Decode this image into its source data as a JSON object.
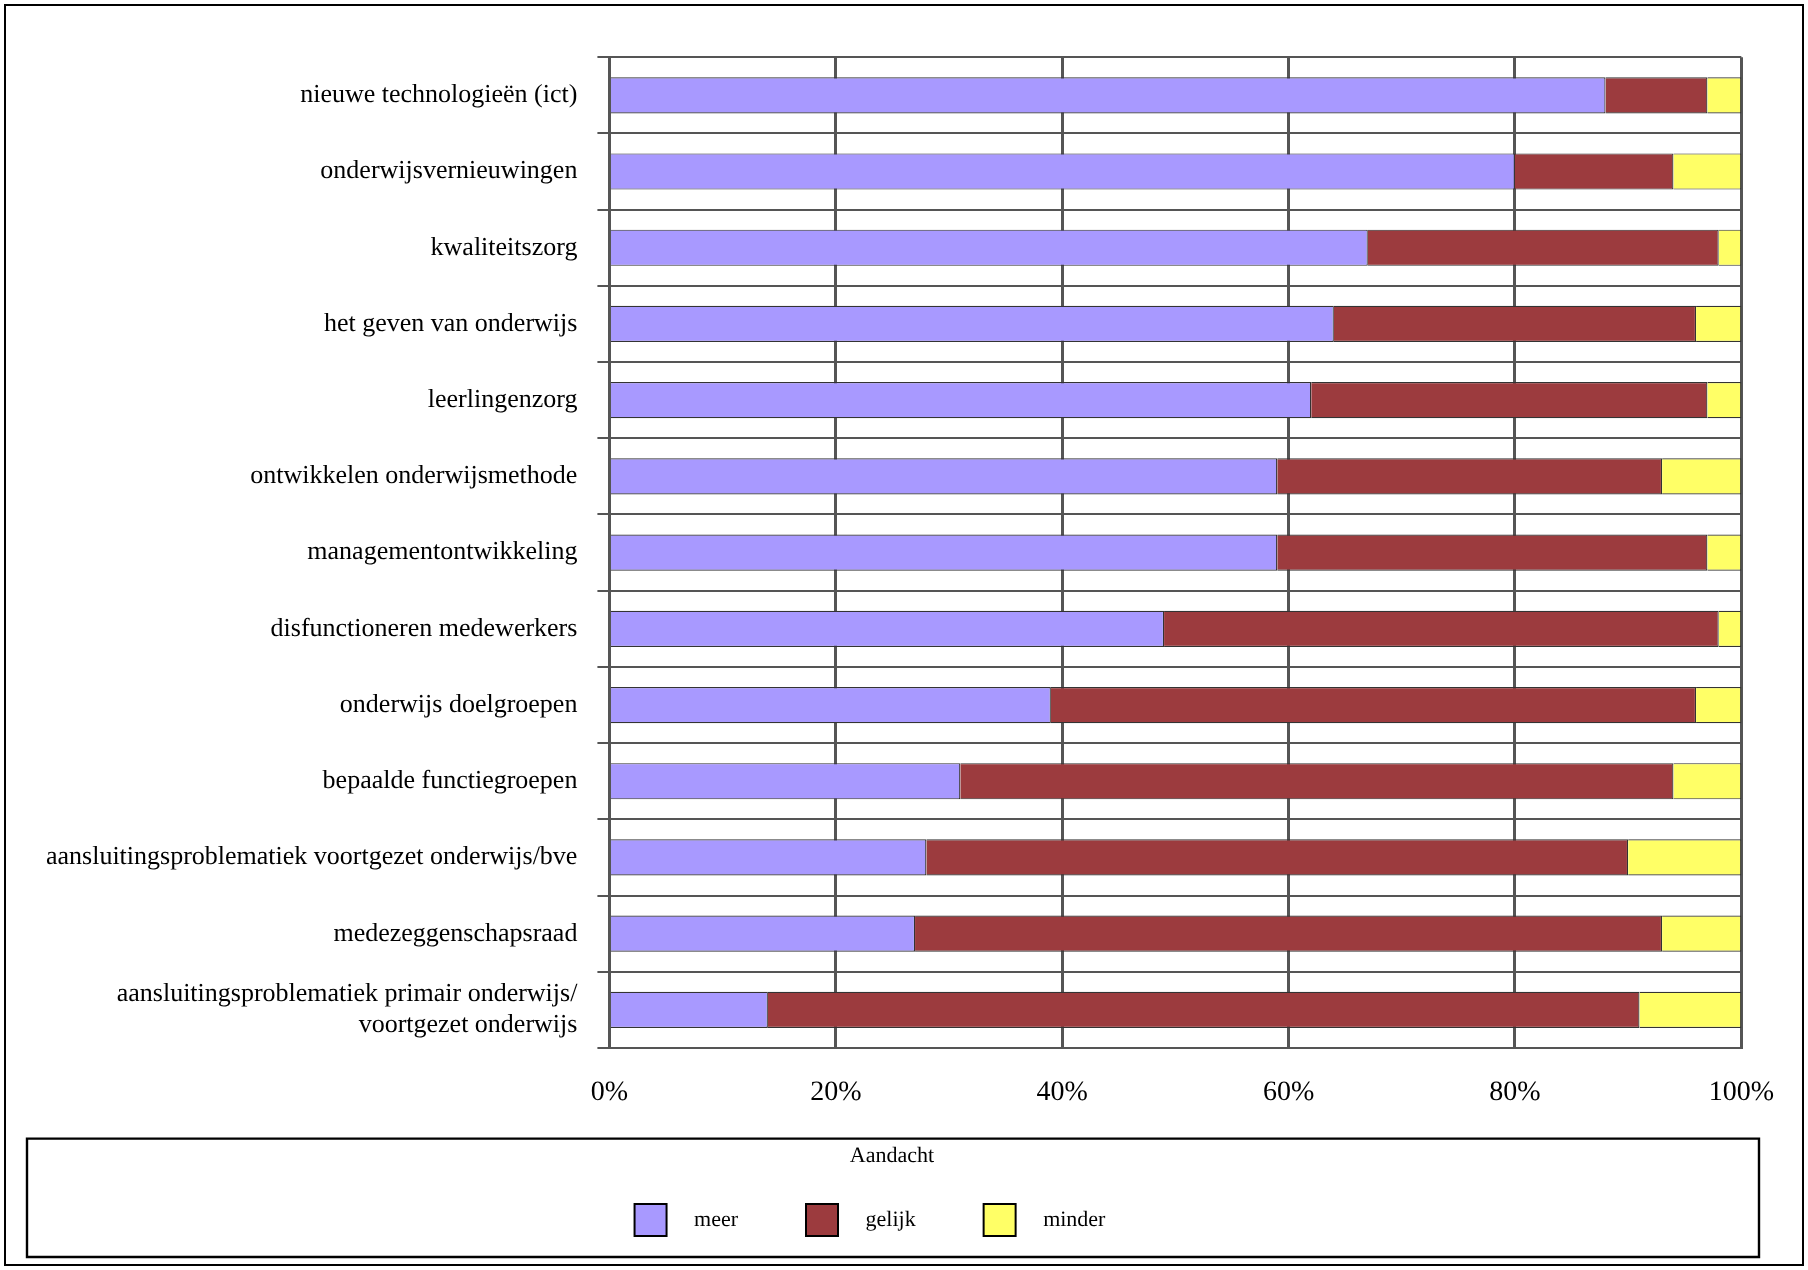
{
  "chart_data": {
    "type": "bar",
    "orientation": "horizontal",
    "stacked": true,
    "categories": [
      "nieuwe technologieën (ict)",
      "onderwijsvernieuwingen",
      "kwaliteitszorg",
      "het geven van onderwijs",
      "leerlingenzorg",
      "ontwikkelen onderwijsmethode",
      "managementontwikkeling",
      "disfunctioneren medewerkers",
      "onderwijs doelgroepen",
      "bepaalde functiegroepen",
      "aansluitingsproblematiek voortgezet onderwijs/bve",
      "medezeggenschapsraad",
      "aansluitingsproblematiek primair onderwijs/\nvoortgezet onderwijs"
    ],
    "series": [
      {
        "name": "meer",
        "color": "#a899ff",
        "values": [
          88,
          80,
          67,
          64,
          62,
          59,
          59,
          49,
          39,
          31,
          28,
          27,
          14
        ]
      },
      {
        "name": "gelijk",
        "color": "#9c3b3e",
        "values": [
          9,
          14,
          31,
          32,
          35,
          34,
          38,
          49,
          57,
          63,
          62,
          66,
          77
        ]
      },
      {
        "name": "minder",
        "color": "#ffff66",
        "values": [
          3,
          6,
          2,
          4,
          3,
          7,
          3,
          2,
          4,
          6,
          10,
          7,
          9
        ]
      }
    ],
    "xlim": [
      0,
      100
    ],
    "xticks": [
      {
        "value": 0,
        "label": "0%"
      },
      {
        "value": 20,
        "label": "20%"
      },
      {
        "value": 40,
        "label": "40%"
      },
      {
        "value": 60,
        "label": "60%"
      },
      {
        "value": 80,
        "label": "80%"
      },
      {
        "value": 100,
        "label": "100%"
      }
    ],
    "grid": true,
    "legend": "bottom",
    "legend_title": "Aandacht"
  }
}
